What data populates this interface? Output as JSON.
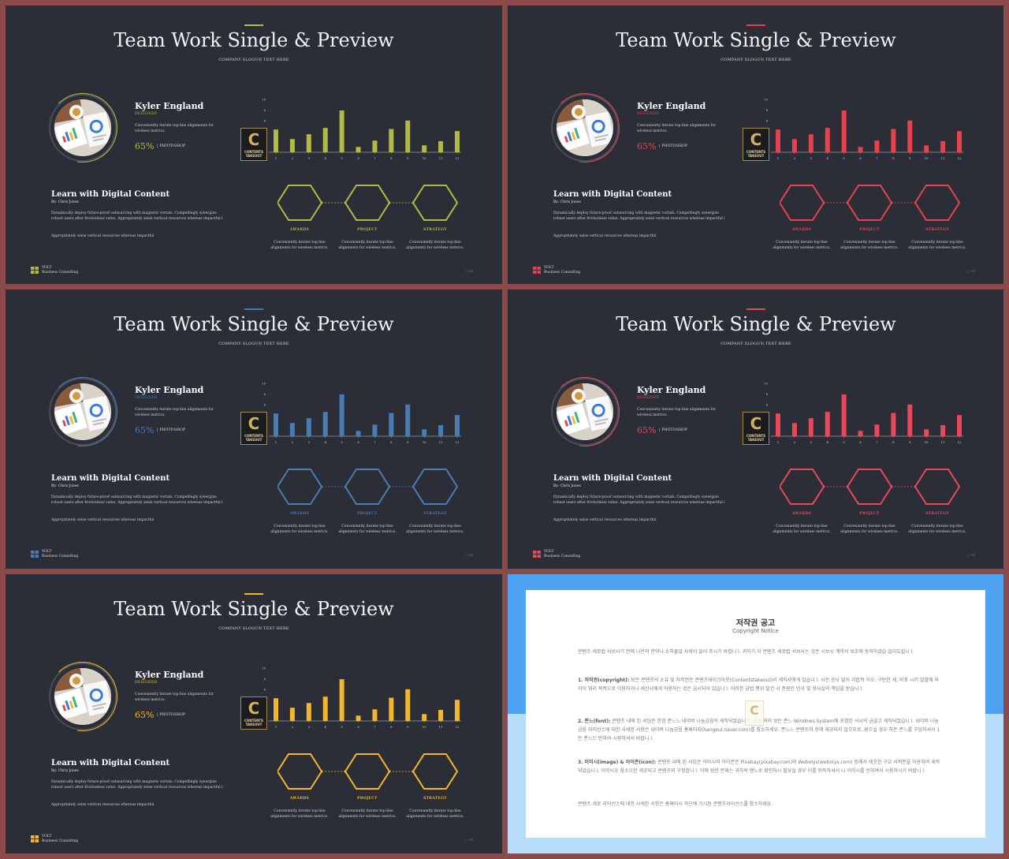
{
  "slides": [
    {
      "accent": "#b3b945",
      "variant": "olive"
    },
    {
      "accent": "#e8414d",
      "variant": "red"
    },
    {
      "accent": "#4a7bb3",
      "variant": "blue"
    },
    {
      "accent": "#e9485a",
      "variant": "coral"
    },
    {
      "accent": "#f3b727",
      "variant": "gold"
    }
  ],
  "content": {
    "title": "Team Work Single & Preview",
    "slogan": "COMPANY SLOGUN TEXT HERE",
    "name": "Kyler England",
    "role": "DESIGNER",
    "description": "Conveniently iterate top-line alignments for wireless metrics.",
    "percent": "65%",
    "percent_value": 65,
    "skill": "PHOTOSHOP",
    "logo_letter": "C",
    "logo_text": "CONTENTS TAKEOUT",
    "learn_title": "Learn with Digital Content",
    "author": "By: Chris Jones",
    "body": "Dynamically deploy future-proof outsourcing with magnetic vortals. Compellingly synergize robust users after frictionless value. Appropriately seize vertical resources whereas impactful l",
    "body2": "Appropriately seize vertical resources whereas impactful",
    "hex_items": [
      {
        "label": "AWARDS",
        "desc": "Conveniently iterate top-line alignments for wireless metrics."
      },
      {
        "label": "PROJECT",
        "desc": "Conveniently iterate top-line alignments for wireless metrics."
      },
      {
        "label": "STRATEGY",
        "desc": "Conveniently iterate top-line alignments for wireless metrics."
      }
    ],
    "brand_name": "VOLT",
    "brand_sub": "Business  Consulting",
    "page_number": "/ / 01"
  },
  "chart_data": {
    "type": "bar",
    "categories": [
      "1",
      "2",
      "3",
      "4",
      "5",
      "6",
      "7",
      "8",
      "9",
      "10",
      "11",
      "12"
    ],
    "values": [
      4.3,
      2.5,
      3.4,
      4.6,
      7.9,
      1.0,
      2.2,
      4.4,
      6.0,
      1.3,
      2.1,
      4.0
    ],
    "yticks": [
      "10",
      "8",
      "6",
      "4",
      "2"
    ],
    "ylim": [
      0,
      10
    ]
  },
  "notice": {
    "title": "저작권 공고",
    "subtitle": "Copyright Notice",
    "intro": "콘텐츠 세로컵 서브사기 전에 나온의 한약나 소하물알 사세이 읽어 주시기 바랍니 l. 귀하기 이 콘텐츠 세로컵 서브사는 것은 시보시 계약서 보조에 동의하셨습 알리도립니 l.",
    "p1_head": "1. 저작권(copyright):",
    "p1": "보든 콘텐츠의 소유 및 저작권은 콘텐츠테이크아웃(Contentstakeout)서 세작사에게 있습니 l. 사전 승낙 없이 괴법적 이오, 구탄한 세, 비포 시키 않발에 와이이 영리 목적으로 이용하거나 세신시에게 이용하는 것은 금시되어 있습니 l. 이러한 금법 행위 발건 시 준원인 민사 및 형사실의 책임을 받습니 l.",
    "p2_head": "2. 폰느(font):",
    "p2": "콘텐츠 내에 된 서임은 한검 폰느느 네이버 나눔금음의 세작되었습니 ll. 한검 의의 보든 폰느 Windows System에 포함된 서시의 금골고 세작되었습니 l. 네이버 나눔금음 라이선스에 대한 사세한 서항은 네이버 나눔금음 홈페이지(hangeul.naver.com)를 참소하세요. 폰느느 콘텐츠의 항에 세공되지 않으므로, 원으실 경우 하든 폰느를 구입하셔서 1든 폰느드 빈하여 시원하셔서 바랍니 l.",
    "p3_head": "3. 이미시(image) & 아이콘(icon):",
    "p3": "콘텐츠 내에 된 서임은 이미시와 아이콘은 Pixabay(pixabay.com)와 Webolys(webolys.com) 등에서 세곳한 구교 서적분을 이용하여 세작되었습니 l. 이미시오 참소으한 세곳되고 콘텐츠의 구정합니 l. 이에 원한 문제는 귀하의 밴느로 확인하시 필요실 경우 이를 뒤득하셔서 니 이미시를 빈하여서 시용하시기 바랍니 l.",
    "outro": "콘텐츠 세로 라이선스에 내한 사세한 서항은 홈페이시 하단에 기시된 콘텐츠라이선스를 참소하세요.",
    "logo_letter": "C"
  }
}
